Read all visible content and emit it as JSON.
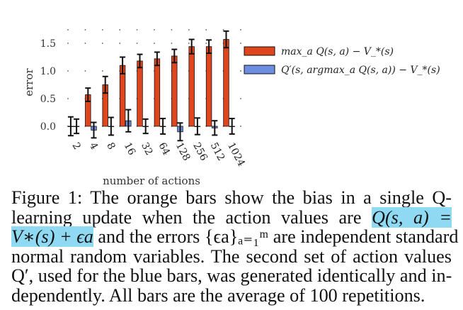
{
  "chart_data": {
    "type": "bar",
    "categories": [
      "2",
      "4",
      "8",
      "16",
      "32",
      "64",
      "128",
      "256",
      "512",
      "1024"
    ],
    "series": [
      {
        "name": "max_a Q(s, a) − V_*(s)",
        "color": "#e0461e",
        "values": [
          0.0,
          0.57,
          0.75,
          1.1,
          1.18,
          1.22,
          1.27,
          1.44,
          1.44,
          1.57
        ],
        "errors": [
          0.17,
          0.12,
          0.15,
          0.15,
          0.12,
          0.12,
          0.12,
          0.13,
          0.12,
          0.15
        ]
      },
      {
        "name": "Q′(s, argmax_a Q(s, a)) − V_*(s)",
        "color": "#6c8de0",
        "values": [
          0.0,
          -0.07,
          0.0,
          0.1,
          0.0,
          0.0,
          -0.1,
          0.0,
          -0.03,
          0.0
        ],
        "errors": [
          0.13,
          0.14,
          0.16,
          0.2,
          0.13,
          0.14,
          0.16,
          0.15,
          0.13,
          0.14
        ]
      }
    ],
    "xlabel": "number of actions",
    "ylabel": "error",
    "yticks": [
      "0.0",
      "0.5",
      "1.0",
      "1.5"
    ],
    "ylim": [
      -0.2,
      1.9
    ],
    "legend": "top-right"
  },
  "caption": {
    "line1": "Figure 1:  The orange bars show the bias in a single Q-",
    "line2a": "learning update when the action values are ",
    "line2b": "Q(s, a)  =",
    "line3a": "V∗(s) + ϵa",
    "line3b": " and the errors {ϵa}ₐ₌₁ᵐ are independent standard",
    "line4": "normal random variables. The second set of action values",
    "line5": "Q′, used for the blue bars, was generated identically and in-",
    "line6": "dependently. All bars are the average of 100 repetitions."
  }
}
